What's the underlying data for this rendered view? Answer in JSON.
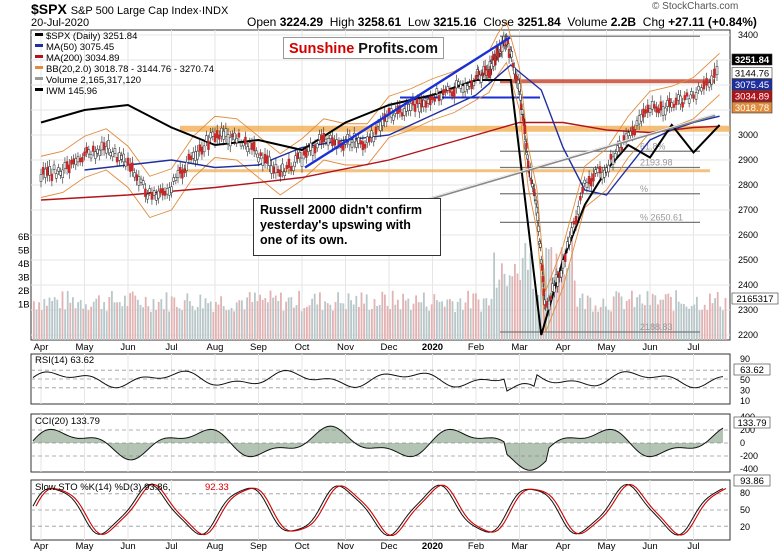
{
  "header": {
    "symbol": "$SPX",
    "name": "S&P 500 Large Cap Index",
    "exchange": "INDX",
    "date": "20-Jul-2020",
    "open_label": "Open",
    "open": "3224.29",
    "high_label": "High",
    "high": "3258.61",
    "low_label": "Low",
    "low": "3215.16",
    "close_label": "Close",
    "close": "3251.84",
    "volume_label": "Volume",
    "volume": "2.2B",
    "chg_label": "Chg",
    "chg": "+27.11 (+0.84%)",
    "watermark": "© StockCharts.com"
  },
  "logo": {
    "part1": "Sunshine",
    "part2": "Profits.com"
  },
  "annotation": "Russell 2000 didn't confirm yesterday's upswing with one of its own.",
  "legend_main": [
    {
      "text": "$SPX (Daily) 3251.84",
      "color": "#000000",
      "icon": "candle-icon"
    },
    {
      "text": "MA(50) 3075.45",
      "color": "#1f2f9f",
      "icon": "line-icon"
    },
    {
      "text": "MA(200) 3034.89",
      "color": "#b0141b",
      "icon": "line-icon"
    },
    {
      "text": "BB(20,2.0) 3018.78 - 3144.76 - 3270.74",
      "color": "#e08c3c",
      "icon": "line-icon"
    },
    {
      "text": "Volume 2,165,317,120",
      "color": "#999999",
      "icon": "bar-icon"
    },
    {
      "text": "IWM 145.96",
      "color": "#000000",
      "icon": "line-icon"
    }
  ],
  "price_badges": [
    {
      "text": "3251.84",
      "bg": "#000000",
      "fg": "#ffffff",
      "y": 3251.84
    },
    {
      "text": "3144.76",
      "bg": "#ffffff",
      "fg": "#000000",
      "y": 3144.76
    },
    {
      "text": "3075.45",
      "bg": "#1f2f9f",
      "fg": "#ffffff",
      "y": 3075.45
    },
    {
      "text": "3034.89",
      "bg": "#b0141b",
      "fg": "#ffffff",
      "y": 3034.89
    },
    {
      "text": "3018.78",
      "bg": "#e08c3c",
      "fg": "#ffffff",
      "y": 3018.78
    }
  ],
  "volume_badge": "2165317",
  "fib_labels": [
    {
      "text": "61.8%",
      "y": 2935
    },
    {
      "text": "%",
      "y": 2765
    },
    {
      "text": "% 2650.61",
      "y": 2650.61
    },
    {
      "text": "2193.98",
      "y": 2870
    },
    {
      "text": "2188.83",
      "y": 2212
    }
  ],
  "panels": {
    "rsi": {
      "label": "RSI(14) 63.62",
      "badge": "63.62",
      "ticks": [
        "90",
        "70",
        "50",
        "30",
        "10"
      ]
    },
    "cci": {
      "label": "CCI(20) 133.79",
      "badge": "133.79",
      "ticks": [
        "400",
        "200",
        "0",
        "-200",
        "-400"
      ]
    },
    "sto": {
      "label": "Slow STO %K(14) %D(3) 93.86,",
      "label_d": "92.33",
      "badge": "93.86",
      "ticks": [
        "80",
        "50",
        "20"
      ]
    }
  },
  "colors": {
    "up": "#2e7d32",
    "down": "#c62828",
    "ma50": "#1f2f9f",
    "ma200": "#b0141b",
    "bb": "#e08c3c",
    "iwm": "#000000",
    "trend_blue": "#1a2fd6",
    "resist": "#f0a84a",
    "volume": "#d9a7a7",
    "sto_d": "#d00000",
    "grid": "#e6e6e6"
  },
  "chart_data": {
    "type": "line",
    "title": "$SPX S&P 500 Large Cap Index",
    "x_ticks": [
      "Apr",
      "May",
      "Jun",
      "Jul",
      "Aug",
      "Sep",
      "Oct",
      "Nov",
      "Dec",
      "2020",
      "Feb",
      "Mar",
      "Apr",
      "May",
      "Jun",
      "Jul"
    ],
    "price_ticks": [
      2200,
      2300,
      2400,
      2500,
      2600,
      2700,
      2800,
      2900,
      3000,
      3100,
      3200,
      3300,
      3400
    ],
    "volume_ticks": [
      "6B",
      "5B",
      "4B",
      "3B",
      "2B",
      "1B"
    ],
    "ylim": [
      2180,
      3420
    ],
    "series": [
      {
        "name": "$SPX (Daily)",
        "x": [
          0,
          0.5,
          1,
          1.5,
          2,
          2.5,
          3,
          3.5,
          4,
          4.5,
          5,
          5.5,
          6,
          6.5,
          7,
          7.5,
          8,
          8.5,
          9,
          9.5,
          10,
          10.3,
          10.5,
          10.7,
          11,
          11.2,
          11.4,
          11.6,
          12,
          12.5,
          13,
          13.5,
          14,
          14.5,
          15,
          15.6
        ],
        "values": [
          2840,
          2860,
          2920,
          2950,
          2880,
          2760,
          2790,
          2920,
          3000,
          2990,
          2920,
          2850,
          2910,
          2990,
          2970,
          2970,
          3080,
          3110,
          3150,
          3180,
          3230,
          3260,
          3330,
          3380,
          3190,
          2880,
          2710,
          2300,
          2480,
          2800,
          2870,
          3000,
          3100,
          3120,
          3155,
          3251.84
        ]
      },
      {
        "name": "MA(50)",
        "x": [
          1,
          2,
          3,
          4,
          5,
          6,
          7,
          8,
          9,
          10,
          10.8,
          11.5,
          12,
          12.5,
          13,
          13.5,
          14,
          14.5,
          15,
          15.6
        ],
        "values": [
          2860,
          2880,
          2900,
          2870,
          2880,
          2950,
          2980,
          3000,
          3080,
          3160,
          3280,
          3180,
          2950,
          2780,
          2760,
          2870,
          2980,
          3020,
          3050,
          3075.45
        ]
      },
      {
        "name": "MA(200)",
        "x": [
          0,
          2,
          4,
          6,
          8,
          9,
          10,
          11,
          12,
          13,
          14,
          15,
          15.6
        ],
        "values": [
          2740,
          2760,
          2790,
          2830,
          2900,
          2950,
          3000,
          3050,
          3050,
          3020,
          3010,
          3030,
          3034.89
        ]
      },
      {
        "name": "IWM",
        "x": [
          0,
          1,
          2,
          3,
          4,
          5,
          6,
          7,
          8,
          9,
          10,
          10.8,
          11.5,
          12,
          12.5,
          13,
          13.5,
          14,
          14.5,
          15,
          15.6
        ],
        "values": [
          3050,
          3100,
          3120,
          3030,
          2960,
          2980,
          2940,
          3050,
          3120,
          3160,
          3220,
          3220,
          2200,
          2500,
          2720,
          2860,
          2960,
          2910,
          3040,
          2930,
          3040
        ]
      }
    ]
  }
}
